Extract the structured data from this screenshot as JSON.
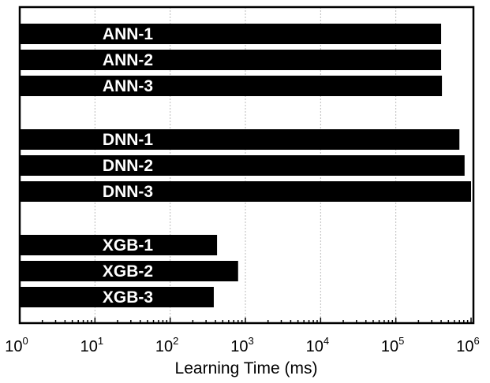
{
  "chart_data": {
    "type": "bar",
    "orientation": "horizontal",
    "xscale": "log",
    "xlim": [
      1,
      1000000
    ],
    "xlabel": "Learning Time (ms)",
    "title": "",
    "grid": "vertical dashed at major ticks",
    "xticks": [
      {
        "base": "10",
        "exp": "0",
        "value": 1
      },
      {
        "base": "10",
        "exp": "1",
        "value": 10
      },
      {
        "base": "10",
        "exp": "2",
        "value": 100
      },
      {
        "base": "10",
        "exp": "3",
        "value": 1000
      },
      {
        "base": "10",
        "exp": "4",
        "value": 10000
      },
      {
        "base": "10",
        "exp": "5",
        "value": 100000
      },
      {
        "base": "10",
        "exp": "6",
        "value": 1000000
      }
    ],
    "groups": [
      {
        "bars": [
          {
            "label": "ANN-1",
            "value": 400000
          },
          {
            "label": "ANN-2",
            "value": 400000
          },
          {
            "label": "ANN-3",
            "value": 410000
          }
        ]
      },
      {
        "bars": [
          {
            "label": "DNN-1",
            "value": 700000
          },
          {
            "label": "DNN-2",
            "value": 820000
          },
          {
            "label": "DNN-3",
            "value": 1000000
          }
        ]
      },
      {
        "bars": [
          {
            "label": "XGB-1",
            "value": 420
          },
          {
            "label": "XGB-2",
            "value": 800
          },
          {
            "label": "XGB-3",
            "value": 380
          }
        ]
      }
    ]
  }
}
